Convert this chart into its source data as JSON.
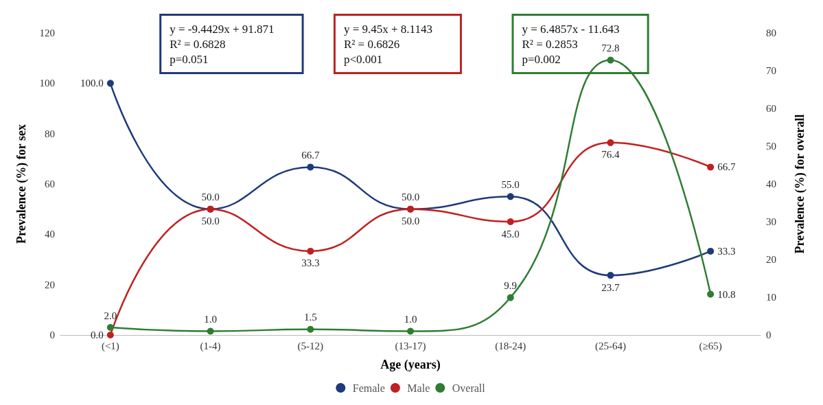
{
  "chart_data": {
    "type": "line",
    "xlabel": "Age (years)",
    "ylabel": "Prevalence (%) for sex",
    "y2label": "Prevalence (%) for overall",
    "categories": [
      "(<1)",
      "(1-4)",
      "(5-12)",
      "(13-17)",
      "(18-24)",
      "(25-64)",
      "(≥65)"
    ],
    "series": [
      {
        "name": "Female",
        "color": "#1f3a7a",
        "values": [
          100,
          50,
          66.7,
          50,
          55,
          23.7,
          33.3
        ],
        "value_labels": [
          "100.0",
          "50.0",
          "66.7",
          "50.0",
          "55.0",
          "23.7",
          "33.3"
        ]
      },
      {
        "name": "Male",
        "color": "#c0201f",
        "values": [
          0,
          50,
          33.3,
          50,
          45,
          76.4,
          66.7
        ],
        "value_labels": [
          "0.0",
          "50.0",
          "33.3",
          "50.0",
          "45.0",
          "76.4",
          "66.7"
        ]
      },
      {
        "name": "Overall",
        "color": "#2e7d32",
        "axis": "y2",
        "values": [
          2.0,
          1.0,
          1.5,
          1.0,
          9.9,
          72.8,
          10.8
        ],
        "value_labels": [
          "2.0",
          "1.0",
          "1.5",
          "1.0",
          "9.9",
          "72.8",
          "10.8"
        ]
      }
    ],
    "ylim": [
      0,
      120
    ],
    "yticks": [
      0,
      20,
      40,
      60,
      80,
      100,
      120
    ],
    "y2lim": [
      0,
      80
    ],
    "y2ticks": [
      0,
      10,
      20,
      30,
      40,
      50,
      60,
      70,
      80
    ],
    "annotations": [
      "y = -9.4429x + 91.871\nR² = 0.6828\np=0.051",
      "y = 9.45x + 8.1143\nR² = 0.6826\np<0.001",
      "y = 6.4857x - 11.643\nR² = 0.2853\np=0.002"
    ],
    "grid": false,
    "legend": "bottom",
    "marker": "circle",
    "line_style": "solid"
  }
}
